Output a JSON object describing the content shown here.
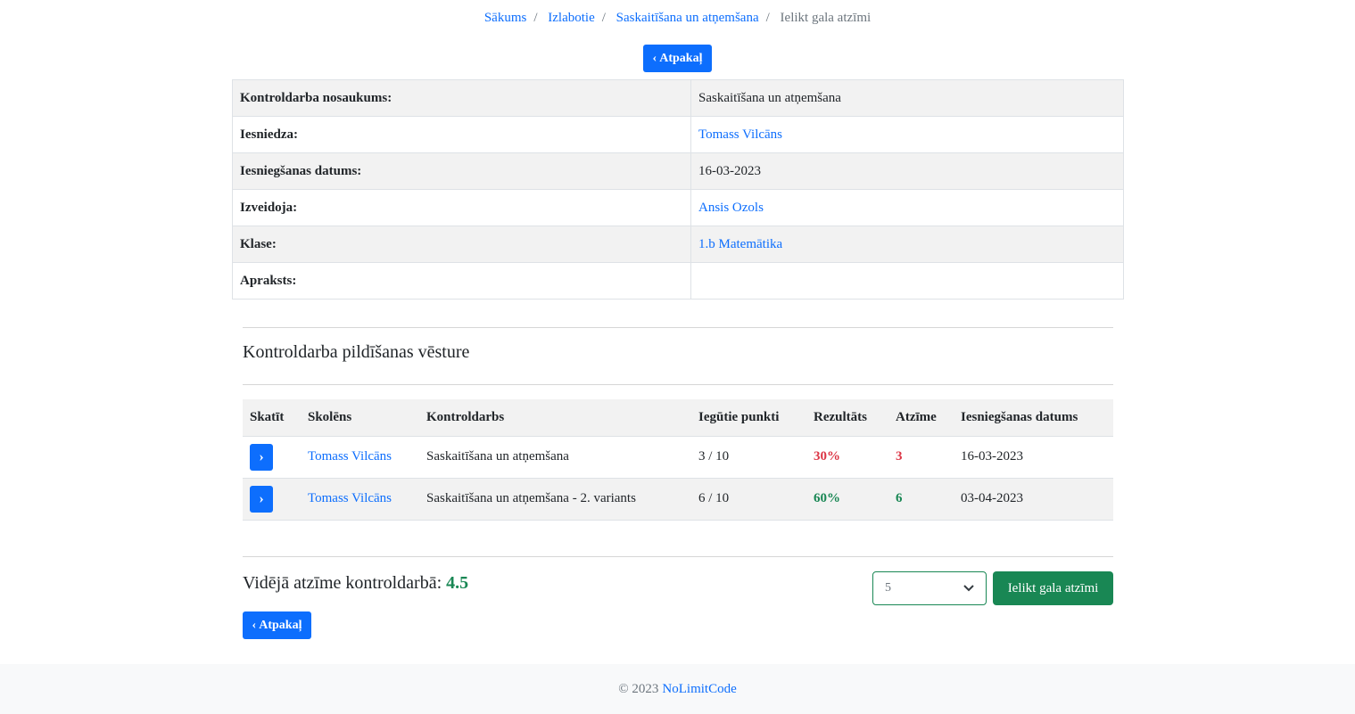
{
  "breadcrumb": {
    "items": [
      "Sākums",
      "Izlabotie",
      "Saskaitīšana un atņemšana"
    ],
    "current": "Ielikt gala atzīmi"
  },
  "back_label": "Atpakaļ",
  "info": [
    {
      "label": "Kontroldarba nosaukums:",
      "value": "Saskaitīšana un atņemšana",
      "link": false
    },
    {
      "label": "Iesniedza:",
      "value": "Tomass Vilcāns",
      "link": true
    },
    {
      "label": "Iesniegšanas datums:",
      "value": "16-03-2023",
      "link": false
    },
    {
      "label": "Izveidoja:",
      "value": "Ansis Ozols",
      "link": true
    },
    {
      "label": "Klase:",
      "value": "1.b Matemātika",
      "link": true
    },
    {
      "label": "Apraksts:",
      "value": "",
      "link": false
    }
  ],
  "history": {
    "title": "Kontroldarba pildīšanas vēsture",
    "columns": [
      "Skatīt",
      "Skolēns",
      "Kontroldarbs",
      "Iegūtie punkti",
      "Rezultāts",
      "Atzīme",
      "Iesniegšanas datums"
    ],
    "rows": [
      {
        "student": "Tomass Vilcāns",
        "test": "Saskaitīšana un atņemšana",
        "points": "3 / 10",
        "result": "30%",
        "grade": "3",
        "date": "16-03-2023",
        "status": "fail"
      },
      {
        "student": "Tomass Vilcāns",
        "test": "Saskaitīšana un atņemšana - 2. variants",
        "points": "6 / 10",
        "result": "60%",
        "grade": "6",
        "date": "03-04-2023",
        "status": "pass"
      }
    ]
  },
  "average": {
    "label": "Vidējā atzīme kontroldarbā:",
    "value": "4.5"
  },
  "grade_select": {
    "value": "5"
  },
  "submit_label": "Ielikt gala atzīmi",
  "footer": {
    "copyright": "© 2023",
    "brand": "NoLimitCode"
  },
  "colors": {
    "primary": "#0d6efd",
    "success": "#198754",
    "danger": "#dc3545"
  }
}
